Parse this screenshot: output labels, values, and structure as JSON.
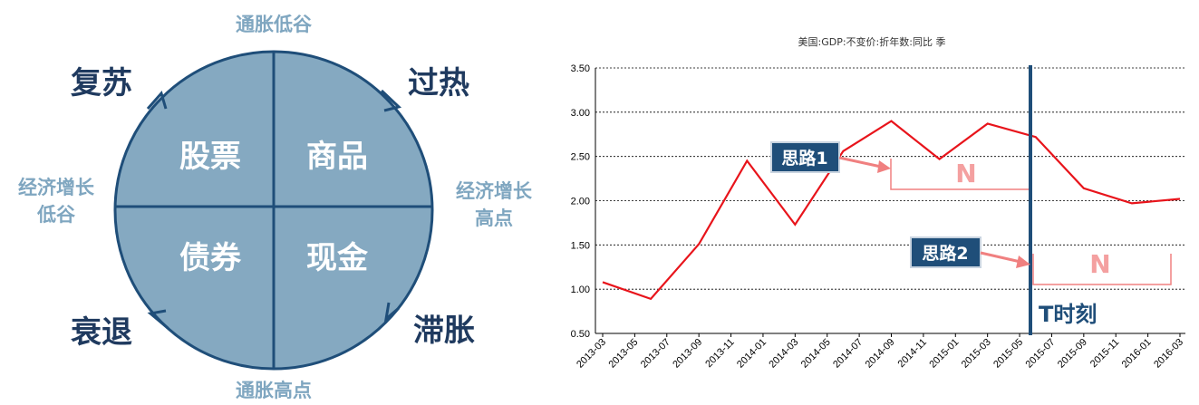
{
  "clock": {
    "phases": {
      "recovery": "复苏",
      "overheat": "过热",
      "stagflation": "滞胀",
      "recession": "衰退"
    },
    "edges": {
      "top": "通胀低谷",
      "bottom": "通胀高点",
      "left_line1": "经济增长",
      "left_line2": "低谷",
      "right_line1": "经济增长",
      "right_line2": "高点"
    },
    "assets": {
      "top_left": "股票",
      "top_right": "商品",
      "bottom_left": "债券",
      "bottom_right": "现金"
    },
    "colors": {
      "circle_fill": "#85a9c1",
      "line": "#1f4e79",
      "phase_text": "#1f3a5f",
      "edge_text": "#7fa6c0"
    }
  },
  "chart_data": {
    "type": "line",
    "title": "美国:GDP:不变价:折年数:同比 季",
    "x": [
      "2013-03",
      "2013-06",
      "2013-09",
      "2013-12",
      "2014-03",
      "2014-06",
      "2014-09",
      "2014-12",
      "2015-03",
      "2015-06",
      "2015-09",
      "2015-12",
      "2016-03"
    ],
    "x_ticks": [
      "2013-03",
      "2013-05",
      "2013-07",
      "2013-09",
      "2013-11",
      "2014-01",
      "2014-03",
      "2014-05",
      "2014-07",
      "2014-09",
      "2014-11",
      "2015-01",
      "2015-03",
      "2015-05",
      "2015-07",
      "2015-09",
      "2015-11",
      "2016-01",
      "2016-03"
    ],
    "series": [
      {
        "values": [
          1.08,
          0.89,
          1.51,
          2.45,
          1.73,
          2.56,
          2.9,
          2.47,
          2.87,
          2.72,
          2.14,
          1.97,
          2.02
        ]
      }
    ],
    "ylim": [
      0.5,
      3.5
    ],
    "y_ticks": [
      "0.50",
      "1.00",
      "1.50",
      "2.00",
      "2.50",
      "3.00",
      "3.50"
    ],
    "grid": true,
    "line_color": "#e8141b",
    "annotations": {
      "idea1": "思路1",
      "idea2": "思路2",
      "n1": "N",
      "n2": "N",
      "t_label": "T时刻"
    },
    "annotation_colors": {
      "box": "#1f4e79",
      "bracket": "#f08080",
      "n_text": "#f4a0a0",
      "t_line": "#1f4e79"
    }
  }
}
